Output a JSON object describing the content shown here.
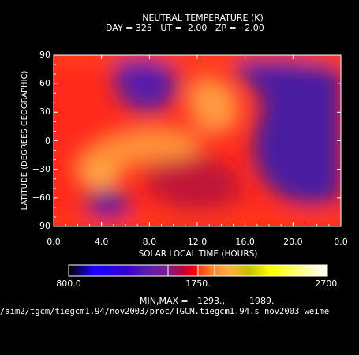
{
  "chart_data": {
    "type": "heatmap",
    "title": "NEUTRAL TEMPERATURE (K)",
    "subtitle_fields": {
      "day_label": "DAY =",
      "day_value": "325",
      "ut_label": "UT =",
      "ut_value": "2.00",
      "zp_label": "ZP =",
      "zp_value": "2.00"
    },
    "xlabel": "SOLAR LOCAL TIME (HOURS)",
    "ylabel": "LATITUDE (DEGREES GEOGRAPHIC)",
    "xlim": [
      0,
      24
    ],
    "ylim": [
      -90,
      90
    ],
    "x_ticks": [
      "0.0",
      "4.0",
      "8.0",
      "12.0",
      "16.0",
      "20.0",
      "0.0"
    ],
    "y_ticks": [
      "90",
      "60",
      "30",
      "0",
      "-30",
      "-60",
      "-90"
    ],
    "colorbar": {
      "min_label": "800.0",
      "mid_label": "1750.",
      "max_label": "2700.",
      "range": [
        800,
        2700
      ]
    },
    "minmax_label": "MIN,MAX =",
    "min_value": "1293.,",
    "max_value": "1989.",
    "data_min": 1293,
    "data_max": 1989,
    "features": [
      {
        "lt": 5.0,
        "lat": -62,
        "value": 1300
      },
      {
        "lt": 20.0,
        "lat": 25,
        "value": 1320
      },
      {
        "lt": 21.0,
        "lat": -25,
        "value": 1330
      },
      {
        "lt": 6.0,
        "lat": 58,
        "value": 1480
      },
      {
        "lt": 12.3,
        "lat": 45,
        "value": 1960
      },
      {
        "lt": 4.5,
        "lat": -38,
        "value": 1989
      },
      {
        "lt": 10.0,
        "lat": -5,
        "value": 1870
      }
    ]
  },
  "footer_path": "/aim2/tgcm/tiegcm1.94/nov2003/proc/TGCM.tiegcm1.94.s_nov2003_weime",
  "colors": {
    "background": "#000000",
    "foreground": "#ffffff",
    "colorbar_stops": [
      "#000000",
      "#1a00ff",
      "#3300cc",
      "#5c1ab0",
      "#7a2090",
      "#c0003a",
      "#ff0000",
      "#ff3a00",
      "#ff8a30",
      "#ffb040",
      "#c8c000",
      "#ffff00",
      "#ffff90",
      "#ffffff"
    ]
  }
}
